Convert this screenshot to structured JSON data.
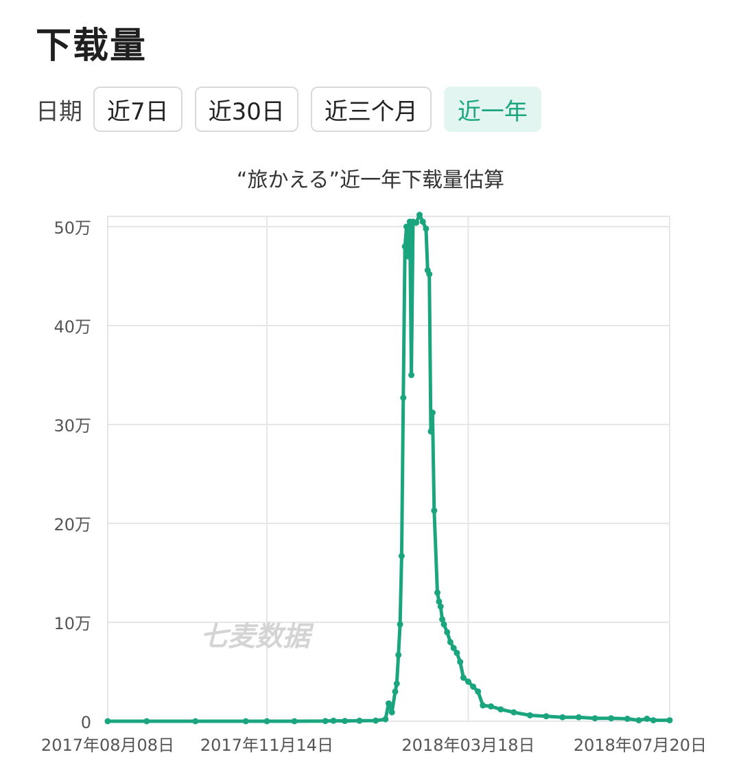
{
  "header": {
    "title": "下载量"
  },
  "date_filter": {
    "label": "日期",
    "options": [
      {
        "label": "近7日",
        "active": false
      },
      {
        "label": "近30日",
        "active": false
      },
      {
        "label": "近三个月",
        "active": false
      },
      {
        "label": "近一年",
        "active": true
      }
    ]
  },
  "watermark": "七麦数据",
  "colors": {
    "line": "#1aa57f",
    "active_bg": "#e3f5f0",
    "grid": "#e6e6e6"
  },
  "chart_data": {
    "type": "line",
    "title": "“旅かえる”近一年下载量估算",
    "xlabel": "",
    "ylabel": "",
    "ylim": [
      0,
      500000
    ],
    "y_ticks": [
      0,
      100000,
      200000,
      300000,
      400000,
      500000
    ],
    "y_tick_labels": [
      "0",
      "10万",
      "20万",
      "30万",
      "40万",
      "50万"
    ],
    "x_range": [
      "2017-08-08",
      "2018-07-20"
    ],
    "x_ticks": [
      "2017-08-08",
      "2017-11-14",
      "2018-03-18",
      "2018-07-20"
    ],
    "x_tick_labels": [
      "2017年08月08日",
      "2017年11月14日",
      "2018年03月18日",
      "2018年07月20日"
    ],
    "grid": true,
    "legend": "none",
    "series": [
      {
        "name": "",
        "points": [
          [
            "2017-08-08",
            0
          ],
          [
            "2017-09-01",
            0
          ],
          [
            "2017-10-01",
            0
          ],
          [
            "2017-11-01",
            0
          ],
          [
            "2017-11-14",
            0
          ],
          [
            "2017-12-01",
            0
          ],
          [
            "2017-12-20",
            200
          ],
          [
            "2017-12-25",
            500
          ],
          [
            "2018-01-01",
            300
          ],
          [
            "2018-01-10",
            500
          ],
          [
            "2018-01-20",
            600
          ],
          [
            "2018-01-26",
            2000
          ],
          [
            "2018-01-28",
            18000
          ],
          [
            "2018-01-30",
            9000
          ],
          [
            "2018-02-01",
            30000
          ],
          [
            "2018-02-02",
            38000
          ],
          [
            "2018-02-03",
            67000
          ],
          [
            "2018-02-04",
            98000
          ],
          [
            "2018-02-05",
            167000
          ],
          [
            "2018-02-06",
            327000
          ],
          [
            "2018-02-07",
            480000
          ],
          [
            "2018-02-08",
            500000
          ],
          [
            "2018-02-09",
            470000
          ],
          [
            "2018-02-10",
            505000
          ],
          [
            "2018-02-11",
            350000
          ],
          [
            "2018-02-12",
            505000
          ],
          [
            "2018-02-14",
            504000
          ],
          [
            "2018-02-16",
            512000
          ],
          [
            "2018-02-18",
            505000
          ],
          [
            "2018-02-20",
            498000
          ],
          [
            "2018-02-21",
            456000
          ],
          [
            "2018-02-22",
            452000
          ],
          [
            "2018-02-23",
            293000
          ],
          [
            "2018-02-24",
            312000
          ],
          [
            "2018-02-25",
            213000
          ],
          [
            "2018-02-27",
            130000
          ],
          [
            "2018-02-28",
            121000
          ],
          [
            "2018-03-01",
            116000
          ],
          [
            "2018-03-02",
            103000
          ],
          [
            "2018-03-03",
            98000
          ],
          [
            "2018-03-05",
            90000
          ],
          [
            "2018-03-07",
            80000
          ],
          [
            "2018-03-09",
            74000
          ],
          [
            "2018-03-11",
            69000
          ],
          [
            "2018-03-13",
            60000
          ],
          [
            "2018-03-15",
            44000
          ],
          [
            "2018-03-18",
            40000
          ],
          [
            "2018-03-21",
            35000
          ],
          [
            "2018-03-24",
            30000
          ],
          [
            "2018-03-27",
            16000
          ],
          [
            "2018-04-01",
            15000
          ],
          [
            "2018-04-07",
            12000
          ],
          [
            "2018-04-15",
            9000
          ],
          [
            "2018-04-25",
            6000
          ],
          [
            "2018-05-05",
            5000
          ],
          [
            "2018-05-15",
            4000
          ],
          [
            "2018-05-25",
            4000
          ],
          [
            "2018-06-04",
            3000
          ],
          [
            "2018-06-14",
            3000
          ],
          [
            "2018-06-24",
            2500
          ],
          [
            "2018-07-01",
            1000
          ],
          [
            "2018-07-06",
            2500
          ],
          [
            "2018-07-10",
            1000
          ],
          [
            "2018-07-20",
            1000
          ]
        ]
      }
    ]
  }
}
